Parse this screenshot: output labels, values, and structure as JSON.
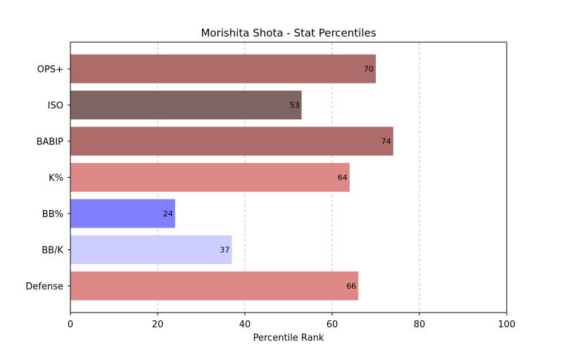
{
  "chart_data": {
    "type": "bar",
    "orientation": "horizontal",
    "title": "Morishita Shota - Stat Percentiles",
    "xlabel": "Percentile Rank",
    "ylabel": "",
    "xlim": [
      0,
      100
    ],
    "xticks": [
      0,
      20,
      40,
      60,
      80,
      100
    ],
    "grid": "x-dashed",
    "categories": [
      "OPS+",
      "ISO",
      "BABIP",
      "K%",
      "BB%",
      "BB/K",
      "Defense"
    ],
    "values": [
      70,
      53,
      74,
      64,
      24,
      37,
      66
    ],
    "colors": [
      "#ad6b69",
      "#7f6464",
      "#ad6b69",
      "#dd8988",
      "#8080ff",
      "#ccccff",
      "#dd8988"
    ]
  }
}
